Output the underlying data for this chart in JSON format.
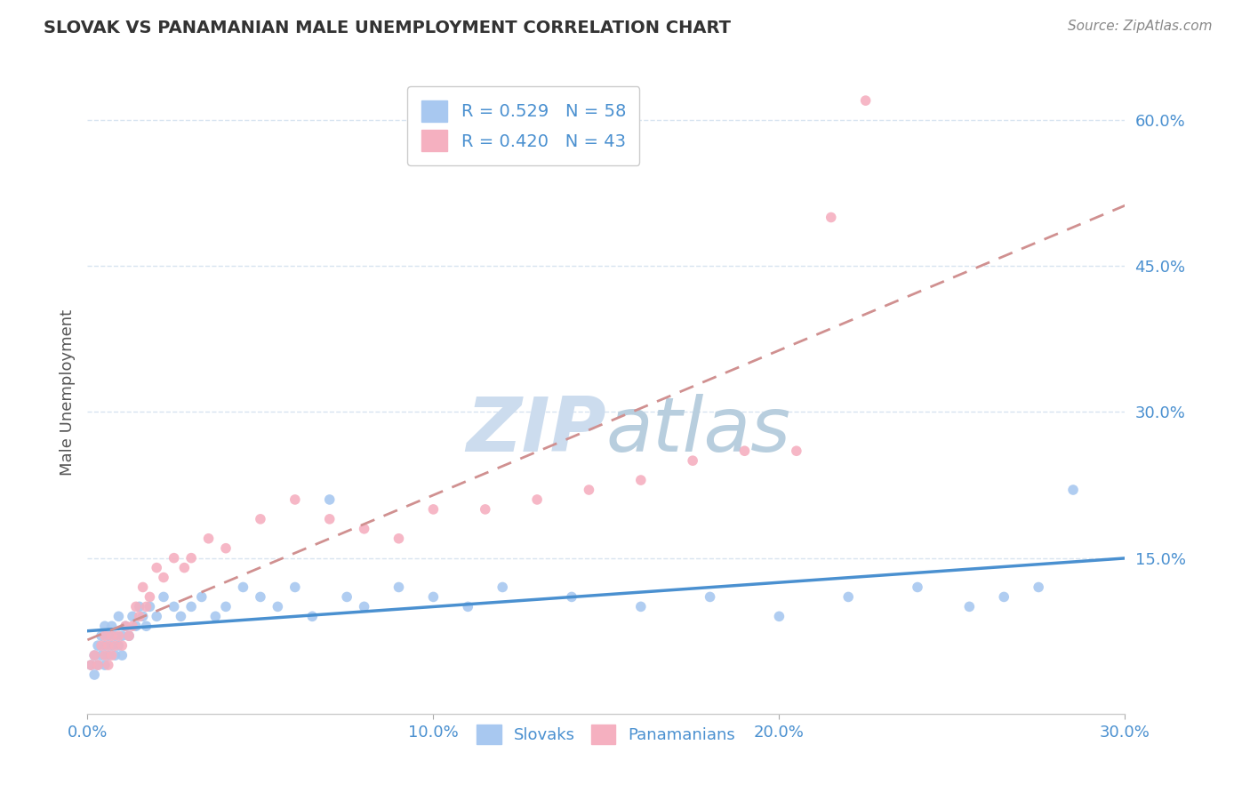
{
  "title": "SLOVAK VS PANAMANIAN MALE UNEMPLOYMENT CORRELATION CHART",
  "source": "Source: ZipAtlas.com",
  "ylabel": "Male Unemployment",
  "xlim": [
    0.0,
    0.3
  ],
  "ylim": [
    -0.01,
    0.65
  ],
  "yticks": [
    0.15,
    0.3,
    0.45,
    0.6
  ],
  "ytick_labels": [
    "15.0%",
    "30.0%",
    "45.0%",
    "60.0%"
  ],
  "xticks": [
    0.0,
    0.1,
    0.2,
    0.3
  ],
  "xtick_labels": [
    "0.0%",
    "10.0%",
    "20.0%",
    "30.0%"
  ],
  "blue_color": "#a8c8f0",
  "pink_color": "#f5b0c0",
  "blue_line_color": "#4a90d0",
  "pink_line_color": "#d09090",
  "axis_color": "#4a90d0",
  "tick_color": "#4a90d0",
  "grid_color": "#d8e4f0",
  "watermark_zip_color": "#dce8f5",
  "watermark_atlas_color": "#c8d8e8",
  "legend_R_slovak": "R = 0.529",
  "legend_N_slovak": "N = 58",
  "legend_R_pana": "R = 0.420",
  "legend_N_pana": "N = 43",
  "slovak_x": [
    0.001,
    0.002,
    0.002,
    0.003,
    0.003,
    0.004,
    0.004,
    0.005,
    0.005,
    0.005,
    0.006,
    0.006,
    0.007,
    0.007,
    0.008,
    0.008,
    0.009,
    0.009,
    0.01,
    0.01,
    0.011,
    0.012,
    0.013,
    0.014,
    0.015,
    0.016,
    0.017,
    0.018,
    0.02,
    0.022,
    0.025,
    0.027,
    0.03,
    0.033,
    0.037,
    0.04,
    0.045,
    0.05,
    0.055,
    0.06,
    0.065,
    0.07,
    0.075,
    0.08,
    0.09,
    0.1,
    0.11,
    0.12,
    0.14,
    0.16,
    0.18,
    0.2,
    0.22,
    0.24,
    0.255,
    0.265,
    0.275,
    0.285
  ],
  "slovak_y": [
    0.04,
    0.05,
    0.03,
    0.06,
    0.04,
    0.05,
    0.07,
    0.04,
    0.06,
    0.08,
    0.05,
    0.07,
    0.06,
    0.08,
    0.05,
    0.07,
    0.06,
    0.09,
    0.07,
    0.05,
    0.08,
    0.07,
    0.09,
    0.08,
    0.1,
    0.09,
    0.08,
    0.1,
    0.09,
    0.11,
    0.1,
    0.09,
    0.1,
    0.11,
    0.09,
    0.1,
    0.12,
    0.11,
    0.1,
    0.12,
    0.09,
    0.21,
    0.11,
    0.1,
    0.12,
    0.11,
    0.1,
    0.12,
    0.11,
    0.1,
    0.11,
    0.09,
    0.11,
    0.12,
    0.1,
    0.11,
    0.12,
    0.22
  ],
  "pana_x": [
    0.001,
    0.002,
    0.003,
    0.004,
    0.005,
    0.005,
    0.006,
    0.006,
    0.007,
    0.007,
    0.008,
    0.009,
    0.01,
    0.011,
    0.012,
    0.013,
    0.014,
    0.015,
    0.016,
    0.017,
    0.018,
    0.02,
    0.022,
    0.025,
    0.028,
    0.03,
    0.035,
    0.04,
    0.05,
    0.06,
    0.07,
    0.08,
    0.09,
    0.1,
    0.115,
    0.13,
    0.145,
    0.16,
    0.175,
    0.19,
    0.205,
    0.215,
    0.225
  ],
  "pana_y": [
    0.04,
    0.05,
    0.04,
    0.06,
    0.05,
    0.07,
    0.04,
    0.06,
    0.05,
    0.07,
    0.06,
    0.07,
    0.06,
    0.08,
    0.07,
    0.08,
    0.1,
    0.09,
    0.12,
    0.1,
    0.11,
    0.14,
    0.13,
    0.15,
    0.14,
    0.15,
    0.17,
    0.16,
    0.19,
    0.21,
    0.19,
    0.18,
    0.17,
    0.2,
    0.2,
    0.21,
    0.22,
    0.23,
    0.25,
    0.26,
    0.26,
    0.5,
    0.62
  ],
  "background_color": "#ffffff",
  "title_color": "#333333",
  "source_color": "#888888"
}
